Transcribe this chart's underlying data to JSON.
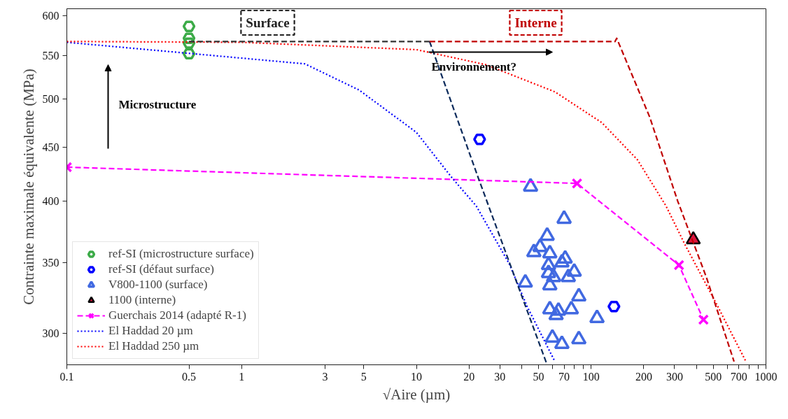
{
  "chart_data": {
    "type": "scatter",
    "xlabel": "√Aire (µm)",
    "ylabel": "Contrainte maximale équivalente (MPa)",
    "log": "xy",
    "grid": false,
    "legend": "bottom left",
    "xlim": [
      0.1,
      1000
    ],
    "ylim": [
      280,
      609
    ],
    "xticks": [
      0.1,
      0.5,
      1,
      3,
      5,
      10,
      20,
      30,
      {
        "value": 40,
        "label": null
      },
      50,
      {
        "value": 60,
        "label": null
      },
      70,
      {
        "value": 80,
        "label": null
      },
      {
        "value": 90,
        "label": null
      },
      100,
      200,
      300,
      {
        "value": 400,
        "label": null
      },
      500,
      {
        "value": 600,
        "label": null
      },
      700,
      {
        "value": 800,
        "label": null
      },
      {
        "value": 900,
        "label": null
      },
      1000
    ],
    "yticks": [
      300,
      350,
      400,
      450,
      500,
      550,
      600
    ],
    "series": [
      {
        "name": "ref-SI (microstructure surface)",
        "color": "#3cab48",
        "x": [
          0.5,
          0.5,
          0.5,
          0.5
        ],
        "values": [
          586,
          571,
          565,
          552
        ]
      },
      {
        "name": "ref-SI (défaut surface)",
        "color": "#0000ff",
        "x": [
          23,
          135
        ],
        "values": [
          458,
          318
        ]
      },
      {
        "name": "V800-1100 (surface)",
        "marker": "triangle",
        "color": "#4169e1",
        "x": [
          45,
          70,
          56,
          47,
          51,
          58,
          71,
          68,
          57,
          80,
          57,
          61,
          74,
          42,
          58,
          85,
          58,
          65,
          63,
          77,
          108,
          60,
          68,
          85
        ],
        "values": [
          413,
          385,
          371,
          358,
          362,
          357,
          353,
          350,
          348,
          343,
          342,
          339,
          339,
          335,
          333,
          325,
          316,
          315,
          312,
          316,
          310,
          297,
          293,
          296
        ]
      },
      {
        "name": "1100 (interne)",
        "marker": "triangle",
        "color": "#dc143c",
        "x": [
          384
        ],
        "values": [
          368
        ]
      },
      {
        "name": "Guerchais 2014 (adapté R-1)",
        "type": "line",
        "marker": "cross",
        "line_style": "dashed",
        "color": "#ff00ff",
        "x": [
          0.1,
          83,
          318,
          439
        ],
        "values": [
          431,
          416,
          348,
          309
        ]
      },
      {
        "name": "El Haddad 20 µm",
        "type": "line",
        "marker": "none",
        "line_style": "dotted",
        "color": "#0000ff",
        "x": [
          0.1,
          2.3,
          4.7,
          10,
          16,
          22,
          34,
          43,
          62
        ],
        "values": [
          566,
          540,
          510,
          465,
          421,
          396,
          349,
          318,
          282
        ]
      },
      {
        "name": "El Haddad 250 µm",
        "type": "line",
        "marker": "none",
        "line_style": "dotted",
        "color": "#ff0000",
        "x": [
          0.1,
          1,
          10,
          25,
          62,
          115,
          184,
          268,
          344,
          515,
          768
        ],
        "values": [
          567,
          566,
          557,
          539,
          508,
          475,
          438,
          396,
          364,
          321,
          282
        ]
      },
      {
        "type": "line",
        "marker": "none",
        "line_style": "dashed",
        "color": "#333333",
        "x": [
          0.5,
          11.9
        ],
        "values": [
          567,
          567
        ]
      },
      {
        "type": "line",
        "marker": "none",
        "line_style": "dashed",
        "color": "#0b2a5b",
        "x": [
          11.9,
          22.6,
          55.5
        ],
        "values": [
          567,
          421,
          281
        ]
      },
      {
        "type": "line",
        "marker": "none",
        "line_style": "dashed",
        "color": "#c00000",
        "x": [
          11.9,
          137,
          140,
          216,
          313,
          456,
          657
        ],
        "values": [
          567,
          567,
          571,
          481,
          400,
          339,
          282
        ]
      }
    ],
    "annotations": [
      "Surface",
      "Interne",
      "Microstructure",
      "Environnement?"
    ]
  }
}
